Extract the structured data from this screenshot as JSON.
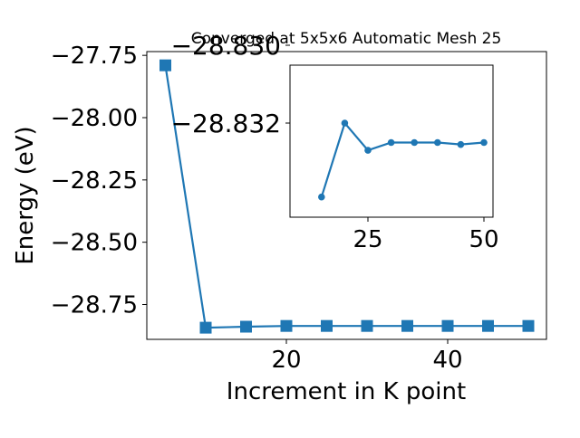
{
  "chart_data": [
    {
      "type": "line",
      "title": "Converged at 5x5x6 Automatic Mesh 25",
      "xlabel": "Increment in K point",
      "ylabel": "Energy (eV)",
      "x": [
        5,
        10,
        15,
        20,
        25,
        30,
        35,
        40,
        45,
        50
      ],
      "series": [
        {
          "values": [
            -27.79,
            -28.843,
            -28.839,
            -28.836,
            -28.836,
            -28.836,
            -28.836,
            -28.836,
            -28.836,
            -28.836
          ]
        }
      ],
      "xticks": [
        20,
        40
      ],
      "xtick_labels": [
        "20",
        "40"
      ],
      "yticks": [
        -28.75,
        -28.5,
        -28.25,
        -28.0,
        -27.75
      ],
      "ytick_labels": [
        "−28.75",
        "−28.50",
        "−28.25",
        "−28.00",
        "−27.75"
      ],
      "marker": "square",
      "color": "#1f77b4",
      "grid": false
    },
    {
      "type": "line",
      "role": "inset",
      "x": [
        15,
        20,
        25,
        30,
        35,
        40,
        45,
        50
      ],
      "series": [
        {
          "values": [
            -28.8339,
            -28.832,
            -28.8327,
            -28.8325,
            -28.8325,
            -28.8325,
            -28.83255,
            -28.8325
          ]
        }
      ],
      "xticks": [
        25,
        50
      ],
      "xtick_labels": [
        "25",
        "50"
      ],
      "yticks": [
        -28.832,
        -28.83
      ],
      "ytick_labels": [
        "−28.832",
        "−28.830"
      ],
      "marker": "circle",
      "color": "#1f77b4",
      "grid": false
    }
  ]
}
